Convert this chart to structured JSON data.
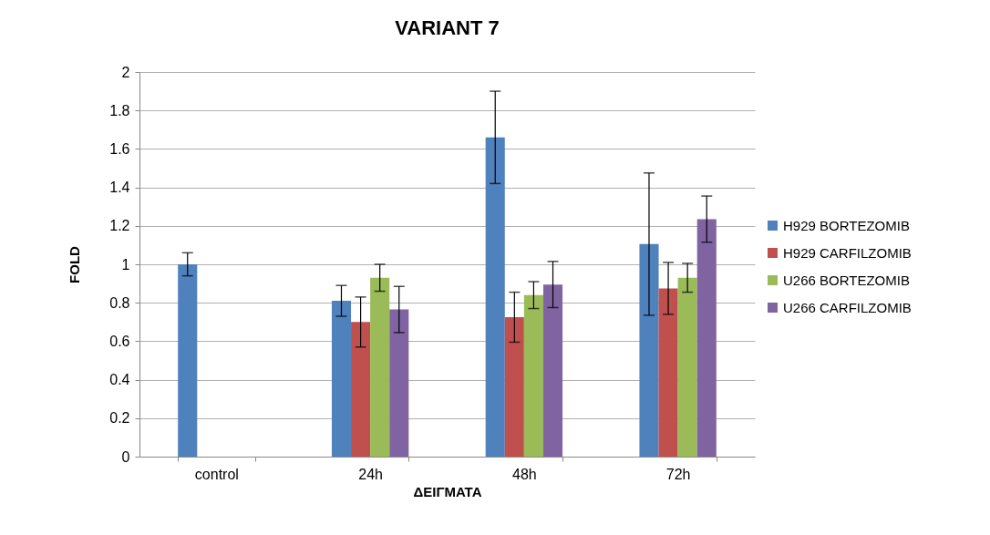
{
  "chart_data": {
    "type": "bar",
    "title": "VARIANT 7",
    "xlabel": "ΔΕΙΓΜΑΤΑ",
    "ylabel": "FOLD",
    "categories": [
      "control",
      "24h",
      "48h",
      "72h"
    ],
    "series": [
      {
        "name": "H929 BORTEZOMIB",
        "color": "#4f81bd",
        "values": [
          1.0,
          0.81,
          1.66,
          1.105
        ],
        "errors": [
          0.06,
          0.08,
          0.24,
          0.37
        ]
      },
      {
        "name": "H929 CARFILZOMIB",
        "color": "#c0504d",
        "values": [
          null,
          0.7,
          0.725,
          0.875
        ],
        "errors": [
          null,
          0.13,
          0.13,
          0.135
        ]
      },
      {
        "name": "U266 BORTEZOMIB",
        "color": "#9bbb59",
        "values": [
          null,
          0.93,
          0.84,
          0.93
        ],
        "errors": [
          null,
          0.07,
          0.07,
          0.075
        ]
      },
      {
        "name": "U266 CARFILZOMIB",
        "color": "#8064a2",
        "values": [
          null,
          0.765,
          0.895,
          1.235
        ],
        "errors": [
          null,
          0.12,
          0.12,
          0.12
        ]
      }
    ],
    "ylim": [
      0,
      2
    ],
    "yticks": [
      0,
      0.2,
      0.4,
      0.6,
      0.8,
      1,
      1.2,
      1.4,
      1.6,
      1.8,
      2
    ],
    "grid": "y",
    "legend": "right"
  }
}
